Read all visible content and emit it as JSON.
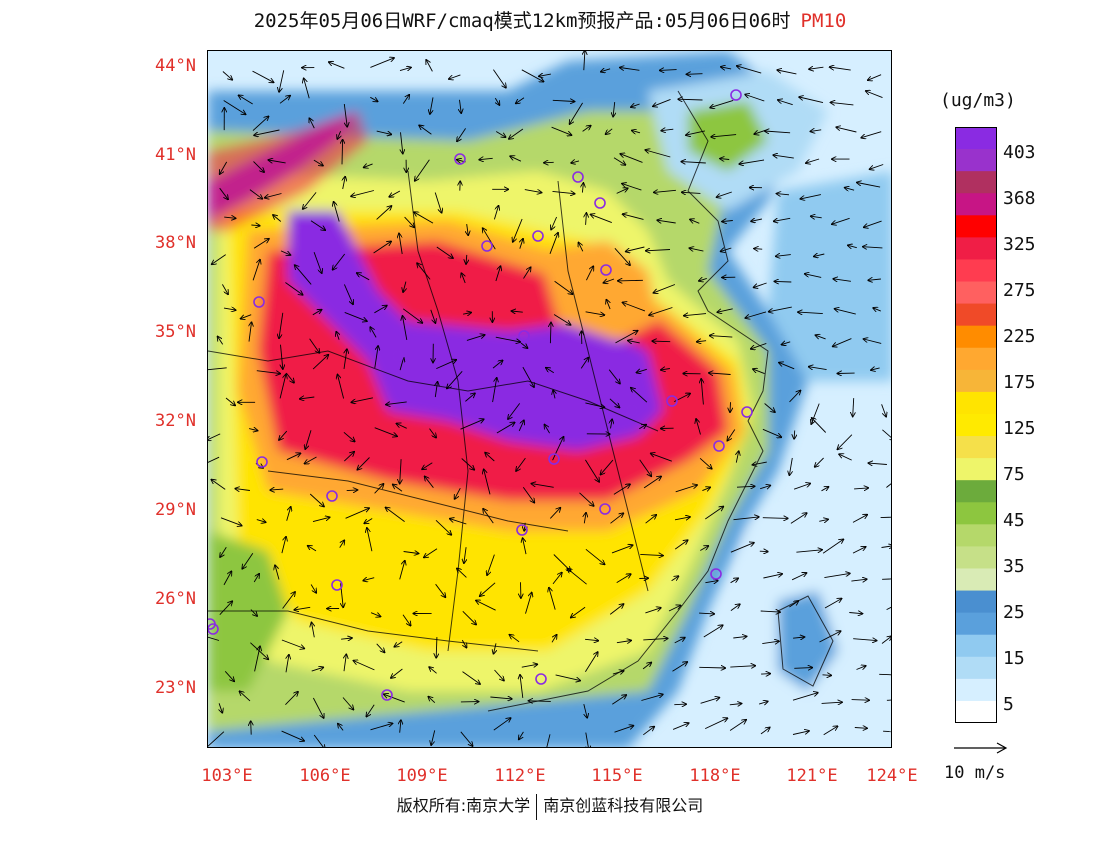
{
  "title": {
    "main": "2025年05月06日WRF/cmaq模式12km预报产品:05月06日06时",
    "pollutant": "PM10"
  },
  "map": {
    "lon_range": [
      103,
      124
    ],
    "lat_range": [
      21,
      44.5
    ],
    "lat_labels": [
      "44°N",
      "41°N",
      "38°N",
      "35°N",
      "32°N",
      "29°N",
      "26°N",
      "23°N"
    ],
    "lat_values": [
      44,
      41,
      38,
      35,
      32,
      29,
      26,
      23
    ],
    "lon_labels": [
      "103°E",
      "106°E",
      "109°E",
      "112°E",
      "115°E",
      "118°E",
      "121°E",
      "124°E"
    ],
    "lon_values": [
      103,
      106,
      109,
      112,
      115,
      118,
      121,
      124
    ],
    "station_markers_color": "#8a2be2"
  },
  "colorbar": {
    "unit": "(ug/m3)",
    "colors": [
      "#8a2be2",
      "#9932cc",
      "#b03060",
      "#c71585",
      "#ff0000",
      "#f01e46",
      "#ff3c50",
      "#ff6060",
      "#f04a28",
      "#ff8c00",
      "#ffa830",
      "#f7b538",
      "#ffe400",
      "#ffea00",
      "#f5e04a",
      "#eef56a",
      "#6cab3c",
      "#8dc63f",
      "#b5d86a",
      "#c6e088",
      "#d9ebb5",
      "#4a8fd0",
      "#5aa0dc",
      "#90caf0",
      "#b0dcf6",
      "#d6efff",
      "#ffffff"
    ],
    "labels": [
      "403",
      "368",
      "325",
      "275",
      "225",
      "175",
      "125",
      "75",
      "45",
      "35",
      "25",
      "15",
      "5"
    ]
  },
  "wind": {
    "reference_label": "10 m/s"
  },
  "copyright": {
    "left": "版权所有:南京大学",
    "right": "南京创蓝科技有限公司"
  }
}
